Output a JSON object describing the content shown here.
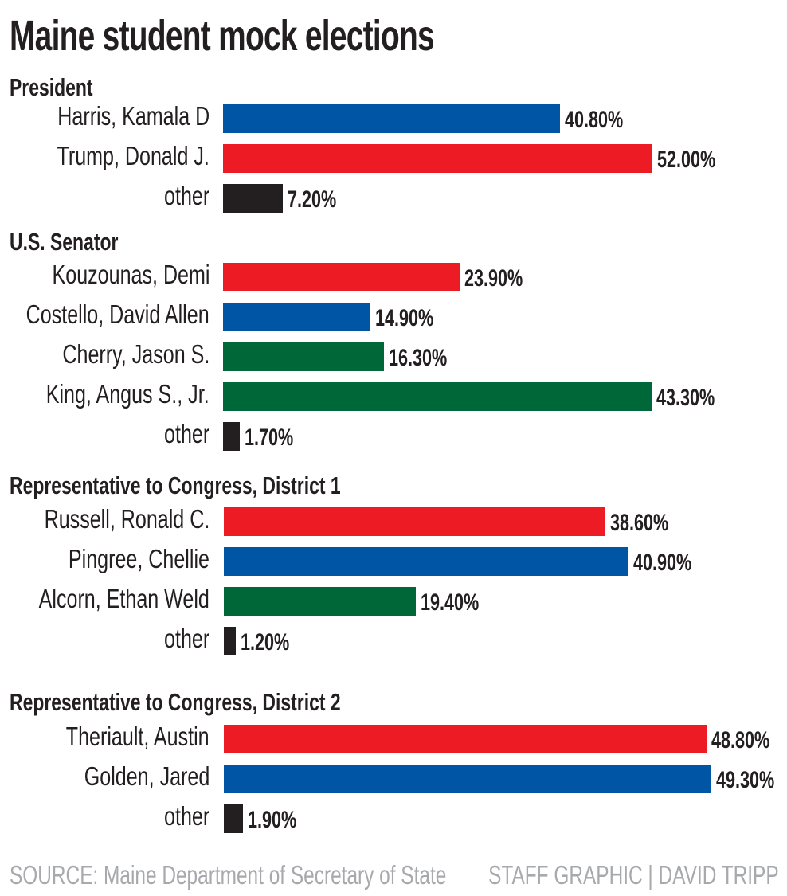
{
  "chart_data": {
    "type": "bar",
    "orientation": "horizontal",
    "title": "Maine student mock elections",
    "unit": "%",
    "colors": {
      "blue": "#0055a5",
      "red": "#ed1c24",
      "green": "#006838",
      "black": "#231f20"
    },
    "groups": [
      {
        "name": "President",
        "items": [
          {
            "label": "Harris, Kamala D",
            "value": 40.8,
            "display": "40.80%",
            "color": "blue"
          },
          {
            "label": "Trump, Donald J.",
            "value": 52.0,
            "display": "52.00%",
            "color": "red"
          },
          {
            "label": "other",
            "value": 7.2,
            "display": "7.20%",
            "color": "black"
          }
        ]
      },
      {
        "name": "U.S. Senator",
        "items": [
          {
            "label": "Kouzounas, Demi",
            "value": 23.9,
            "display": "23.90%",
            "color": "red"
          },
          {
            "label": "Costello, David Allen",
            "value": 14.9,
            "display": "14.90%",
            "color": "blue"
          },
          {
            "label": "Cherry, Jason S.",
            "value": 16.3,
            "display": "16.30%",
            "color": "green"
          },
          {
            "label": "King, Angus S., Jr.",
            "value": 43.3,
            "display": "43.30%",
            "color": "green"
          },
          {
            "label": "other",
            "value": 1.7,
            "display": "1.70%",
            "color": "black"
          }
        ]
      },
      {
        "name": "Representative to Congress, District 1",
        "items": [
          {
            "label": "Russell, Ronald C.",
            "value": 38.6,
            "display": "38.60%",
            "color": "red"
          },
          {
            "label": "Pingree, Chellie",
            "value": 40.9,
            "display": "40.90%",
            "color": "blue"
          },
          {
            "label": "Alcorn, Ethan Weld",
            "value": 19.4,
            "display": "19.40%",
            "color": "green"
          },
          {
            "label": "other",
            "value": 1.2,
            "display": "1.20%",
            "color": "black"
          }
        ]
      },
      {
        "name": "Representative to Congress, District 2",
        "items": [
          {
            "label": "Theriault, Austin",
            "value": 48.8,
            "display": "48.80%",
            "color": "red"
          },
          {
            "label": "Golden, Jared",
            "value": 49.3,
            "display": "49.30%",
            "color": "blue"
          },
          {
            "label": "other",
            "value": 1.9,
            "display": "1.90%",
            "color": "black"
          }
        ]
      }
    ],
    "source": "SOURCE: Maine Department of Secretary of State",
    "credit": "STAFF GRAPHIC | DAVID TRIPP"
  }
}
